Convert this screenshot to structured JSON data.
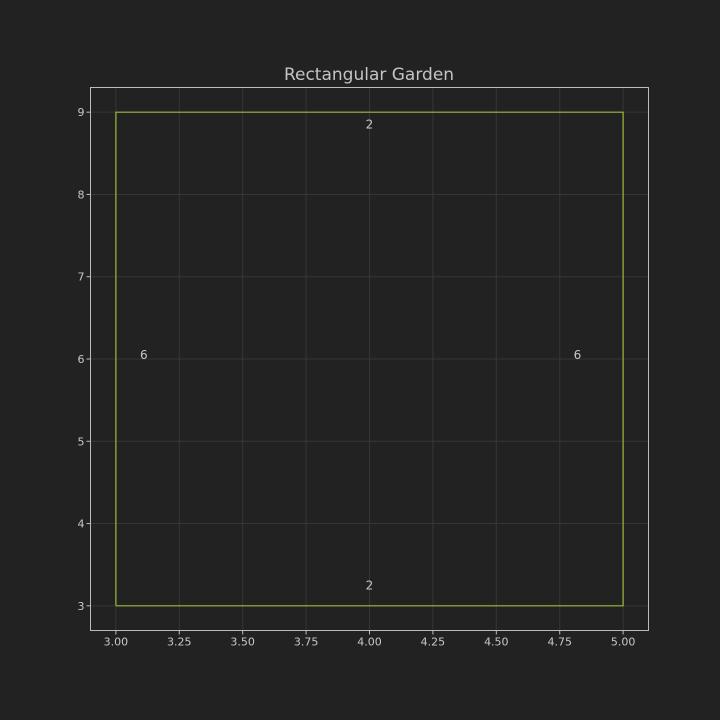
{
  "chart_data": {
    "type": "line",
    "title": "Rectangular Garden",
    "xlabel": "",
    "ylabel": "",
    "xlim": [
      2.9,
      5.1
    ],
    "ylim": [
      2.7,
      9.3
    ],
    "grid": true,
    "x_ticks": [
      3.0,
      3.25,
      3.5,
      3.75,
      4.0,
      4.25,
      4.5,
      4.75,
      5.0
    ],
    "x_tick_labels": [
      "3.00",
      "3.25",
      "3.50",
      "3.75",
      "4.00",
      "4.25",
      "4.50",
      "4.75",
      "5.00"
    ],
    "y_ticks": [
      3,
      4,
      5,
      6,
      7,
      8,
      9
    ],
    "y_tick_labels": [
      "3",
      "4",
      "5",
      "6",
      "7",
      "8",
      "9"
    ],
    "series": [
      {
        "color": "#9bbb3c",
        "x": [
          3,
          5,
          5,
          3,
          3
        ],
        "y": [
          3,
          3,
          9,
          9,
          3
        ]
      }
    ],
    "annotations": [
      {
        "name": "bottom",
        "text": "2",
        "x": 4.0,
        "y": 3.25
      },
      {
        "name": "top",
        "text": "2",
        "x": 4.0,
        "y": 8.85
      },
      {
        "name": "left",
        "text": "6",
        "x": 3.11,
        "y": 6.05
      },
      {
        "name": "right",
        "text": "6",
        "x": 4.82,
        "y": 6.05
      }
    ],
    "colors": {
      "background": "#222222",
      "frame": "#bcbcbc",
      "grid": "#363636",
      "text": "#c8c8c8"
    }
  }
}
